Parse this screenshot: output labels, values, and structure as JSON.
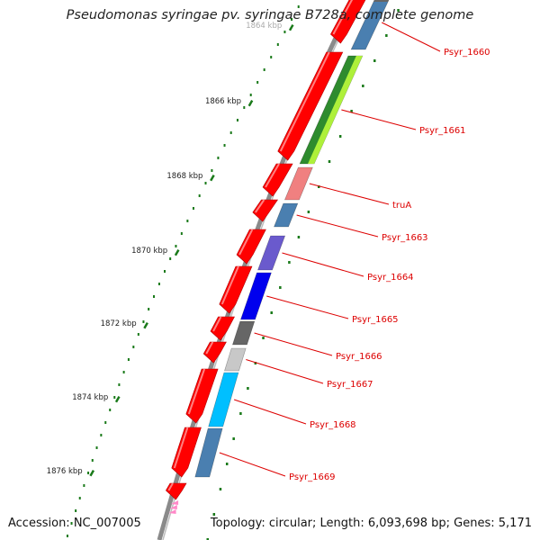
{
  "title": "Pseudomonas syringae pv. syringae B728a, complete genome",
  "footer": {
    "accession_label": "Accession: NC_007005",
    "summary": "Topology: circular; Length: 6,093,698 bp; Genes: 5,171"
  },
  "scale": {
    "labels": [
      "1864 kbp",
      "1866 kbp",
      "1868 kbp",
      "1870 kbp",
      "1872 kbp",
      "1874 kbp",
      "1876 kbp"
    ]
  },
  "genes": [
    {
      "name": "Psyr_1660",
      "color": "#4a7fb0"
    },
    {
      "name": "Psyr_1661",
      "color": "#2e8b2e"
    },
    {
      "name": "truA",
      "color": "#f08080"
    },
    {
      "name": "Psyr_1663",
      "color": "#4a7fb0"
    },
    {
      "name": "Psyr_1664",
      "color": "#6a5acd"
    },
    {
      "name": "Psyr_1665",
      "color": "#0000ee"
    },
    {
      "name": "Psyr_1666",
      "color": "#666666"
    },
    {
      "name": "Psyr_1667",
      "color": "#c8c8c8"
    },
    {
      "name": "Psyr_1668",
      "color": "#00bfff"
    },
    {
      "name": "Psyr_1669",
      "color": "#4a7fb0"
    }
  ],
  "colors": {
    "forward_strand": "#ff0000",
    "backbone": "#808080",
    "tick": "#1a7a1a",
    "label": "#dd0000"
  }
}
